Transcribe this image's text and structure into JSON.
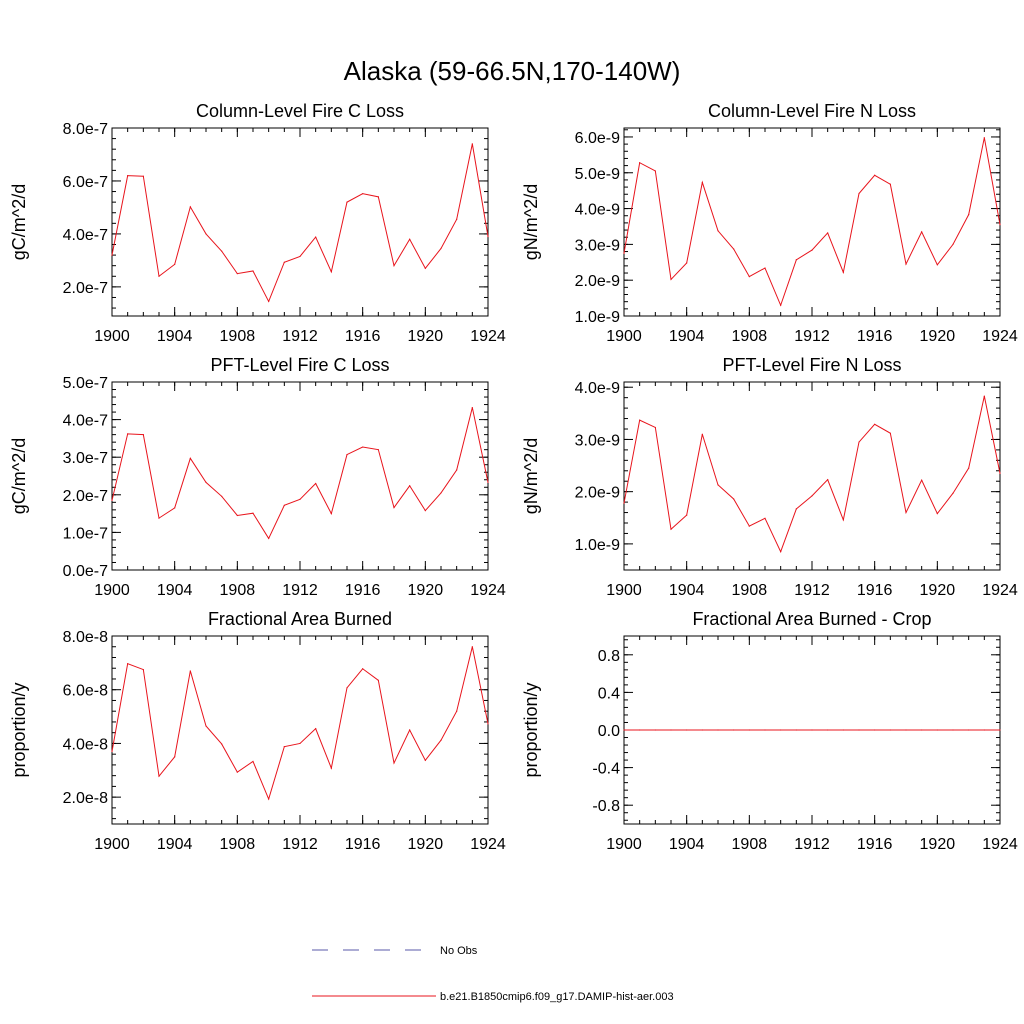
{
  "figure": {
    "title": "Alaska (59-66.5N,170-140W)"
  },
  "colors": {
    "series": "#e8141c",
    "obs": "#5a5aa8",
    "axis": "#000000"
  },
  "legend": {
    "placement": "bottom-center",
    "entries": [
      {
        "label": "No Obs",
        "style": "dashed",
        "color": "#5a5aa8"
      },
      {
        "label": "b.e21.B1850cmip6.f09_g17.DAMIP-hist-aer.003",
        "style": "solid",
        "color": "#e8141c"
      }
    ]
  },
  "chart_data": [
    {
      "type": "line",
      "title": "Column-Level Fire C Loss",
      "ylabel": "gC/m^2/d",
      "xlim": [
        1900,
        1924
      ],
      "ylim": [
        9e-08,
        8e-07
      ],
      "xticks": [
        1900,
        1904,
        1908,
        1912,
        1916,
        1920,
        1924
      ],
      "xtick_labels": [
        "1900",
        "1904",
        "1908",
        "1912",
        "1916",
        "1920",
        "1924"
      ],
      "yticks": [
        2e-07,
        4e-07,
        6e-07,
        8e-07
      ],
      "ytick_labels": [
        "2.0e-7",
        "4.0e-7",
        "6.0e-7",
        "8.0e-7"
      ],
      "series": [
        {
          "name": "b.e21.B1850cmip6.f09_g17.DAMIP-hist-aer.003",
          "x": [
            1900,
            1901,
            1902,
            1903,
            1904,
            1905,
            1906,
            1907,
            1908,
            1909,
            1910,
            1911,
            1912,
            1913,
            1914,
            1915,
            1916,
            1917,
            1918,
            1919,
            1920,
            1921,
            1922,
            1923,
            1924
          ],
          "values": [
            3.2e-07,
            6.2e-07,
            6.18e-07,
            2.4e-07,
            2.85e-07,
            5.02e-07,
            4e-07,
            3.35e-07,
            2.5e-07,
            2.6e-07,
            1.45e-07,
            2.93e-07,
            3.15e-07,
            3.88e-07,
            2.57e-07,
            5.2e-07,
            5.52e-07,
            5.4e-07,
            2.8e-07,
            3.8e-07,
            2.7e-07,
            3.45e-07,
            4.55e-07,
            7.4e-07,
            3.9e-07
          ]
        }
      ]
    },
    {
      "type": "line",
      "title": "Column-Level Fire N Loss",
      "ylabel": "gN/m^2/d",
      "xlim": [
        1900,
        1924
      ],
      "ylim": [
        1e-09,
        6.25e-09
      ],
      "xticks": [
        1900,
        1904,
        1908,
        1912,
        1916,
        1920,
        1924
      ],
      "xtick_labels": [
        "1900",
        "1904",
        "1908",
        "1912",
        "1916",
        "1920",
        "1924"
      ],
      "yticks": [
        1e-09,
        2e-09,
        3e-09,
        4e-09,
        5e-09,
        6e-09
      ],
      "ytick_labels": [
        "1.0e-9",
        "2.0e-9",
        "3.0e-9",
        "4.0e-9",
        "5.0e-9",
        "6.0e-9"
      ],
      "series": [
        {
          "name": "b.e21.B1850cmip6.f09_g17.DAMIP-hist-aer.003",
          "x": [
            1900,
            1901,
            1902,
            1903,
            1904,
            1905,
            1906,
            1907,
            1908,
            1909,
            1910,
            1911,
            1912,
            1913,
            1914,
            1915,
            1916,
            1917,
            1918,
            1919,
            1920,
            1921,
            1922,
            1923,
            1924
          ],
          "values": [
            2.75e-09,
            5.28e-09,
            5.05e-09,
            2.02e-09,
            2.48e-09,
            4.73e-09,
            3.38e-09,
            2.87e-09,
            2.1e-09,
            2.34e-09,
            1.3e-09,
            2.57e-09,
            2.84e-09,
            3.32e-09,
            2.22e-09,
            4.42e-09,
            4.93e-09,
            4.68e-09,
            2.45e-09,
            3.35e-09,
            2.43e-09,
            3e-09,
            3.83e-09,
            5.98e-09,
            3.55e-09
          ]
        }
      ]
    },
    {
      "type": "line",
      "title": "PFT-Level Fire C Loss",
      "ylabel": "gC/m^2/d",
      "xlim": [
        1900,
        1924
      ],
      "ylim": [
        0.0,
        5e-07
      ],
      "xticks": [
        1900,
        1904,
        1908,
        1912,
        1916,
        1920,
        1924
      ],
      "xtick_labels": [
        "1900",
        "1904",
        "1908",
        "1912",
        "1916",
        "1920",
        "1924"
      ],
      "yticks": [
        0.0,
        1e-07,
        2e-07,
        3e-07,
        4e-07,
        5e-07
      ],
      "ytick_labels": [
        "0.0e-7",
        "1.0e-7",
        "2.0e-7",
        "3.0e-7",
        "4.0e-7",
        "5.0e-7"
      ],
      "series": [
        {
          "name": "b.e21.B1850cmip6.f09_g17.DAMIP-hist-aer.003",
          "x": [
            1900,
            1901,
            1902,
            1903,
            1904,
            1905,
            1906,
            1907,
            1908,
            1909,
            1910,
            1911,
            1912,
            1913,
            1914,
            1915,
            1916,
            1917,
            1918,
            1919,
            1920,
            1921,
            1922,
            1923,
            1924
          ],
          "values": [
            1.85e-07,
            3.62e-07,
            3.6e-07,
            1.38e-07,
            1.65e-07,
            2.97e-07,
            2.33e-07,
            1.96e-07,
            1.45e-07,
            1.51e-07,
            8.4e-08,
            1.72e-07,
            1.88e-07,
            2.3e-07,
            1.5e-07,
            3.07e-07,
            3.27e-07,
            3.2e-07,
            1.66e-07,
            2.24e-07,
            1.58e-07,
            2.05e-07,
            2.66e-07,
            4.32e-07,
            2.33e-07
          ]
        }
      ]
    },
    {
      "type": "line",
      "title": "PFT-Level Fire N Loss",
      "ylabel": "gN/m^2/d",
      "xlim": [
        1900,
        1924
      ],
      "ylim": [
        5e-10,
        4.1e-09
      ],
      "xticks": [
        1900,
        1904,
        1908,
        1912,
        1916,
        1920,
        1924
      ],
      "xtick_labels": [
        "1900",
        "1904",
        "1908",
        "1912",
        "1916",
        "1920",
        "1924"
      ],
      "yticks": [
        1e-09,
        2e-09,
        3e-09,
        4e-09
      ],
      "ytick_labels": [
        "1.0e-9",
        "2.0e-9",
        "3.0e-9",
        "4.0e-9"
      ],
      "series": [
        {
          "name": "b.e21.B1850cmip6.f09_g17.DAMIP-hist-aer.003",
          "x": [
            1900,
            1901,
            1902,
            1903,
            1904,
            1905,
            1906,
            1907,
            1908,
            1909,
            1910,
            1911,
            1912,
            1913,
            1914,
            1915,
            1916,
            1917,
            1918,
            1919,
            1920,
            1921,
            1922,
            1923,
            1924
          ],
          "values": [
            1.78e-09,
            3.37e-09,
            3.23e-09,
            1.28e-09,
            1.55e-09,
            3.1e-09,
            2.13e-09,
            1.86e-09,
            1.34e-09,
            1.49e-09,
            8.5e-10,
            1.67e-09,
            1.92e-09,
            2.23e-09,
            1.46e-09,
            2.95e-09,
            3.29e-09,
            3.12e-09,
            1.6e-09,
            2.22e-09,
            1.58e-09,
            1.97e-09,
            2.45e-09,
            3.83e-09,
            2.35e-09
          ]
        }
      ]
    },
    {
      "type": "line",
      "title": "Fractional Area Burned",
      "ylabel": "proportion/y",
      "xlim": [
        1900,
        1924
      ],
      "ylim": [
        1e-08,
        8e-08
      ],
      "xticks": [
        1900,
        1904,
        1908,
        1912,
        1916,
        1920,
        1924
      ],
      "xtick_labels": [
        "1900",
        "1904",
        "1908",
        "1912",
        "1916",
        "1920",
        "1924"
      ],
      "yticks": [
        2e-08,
        4e-08,
        6e-08,
        8e-08
      ],
      "ytick_labels": [
        "2.0e-8",
        "4.0e-8",
        "6.0e-8",
        "8.0e-8"
      ],
      "series": [
        {
          "name": "b.e21.B1850cmip6.f09_g17.DAMIP-hist-aer.003",
          "x": [
            1900,
            1901,
            1902,
            1903,
            1904,
            1905,
            1906,
            1907,
            1908,
            1909,
            1910,
            1911,
            1912,
            1913,
            1914,
            1915,
            1916,
            1917,
            1918,
            1919,
            1920,
            1921,
            1922,
            1923,
            1924
          ],
          "values": [
            3.7e-08,
            6.97e-08,
            6.75e-08,
            2.78e-08,
            3.5e-08,
            6.7e-08,
            4.65e-08,
            3.98e-08,
            2.93e-08,
            3.33e-08,
            1.93e-08,
            3.88e-08,
            4e-08,
            4.55e-08,
            3.08e-08,
            6.07e-08,
            6.78e-08,
            6.35e-08,
            3.27e-08,
            4.5e-08,
            3.37e-08,
            4.12e-08,
            5.2e-08,
            7.6e-08,
            4.73e-08
          ]
        }
      ]
    },
    {
      "type": "line",
      "title": "Fractional Area Burned - Crop",
      "ylabel": "proportion/y",
      "xlim": [
        1900,
        1924
      ],
      "ylim": [
        -1.0,
        1.0
      ],
      "xticks": [
        1900,
        1904,
        1908,
        1912,
        1916,
        1920,
        1924
      ],
      "xtick_labels": [
        "1900",
        "1904",
        "1908",
        "1912",
        "1916",
        "1920",
        "1924"
      ],
      "yticks": [
        -0.8,
        -0.4,
        0.0,
        0.4,
        0.8
      ],
      "ytick_labels": [
        "-0.8",
        "-0.4",
        "0.0",
        "0.4",
        "0.8"
      ],
      "series": [
        {
          "name": "b.e21.B1850cmip6.f09_g17.DAMIP-hist-aer.003",
          "x": [
            1900,
            1901,
            1902,
            1903,
            1904,
            1905,
            1906,
            1907,
            1908,
            1909,
            1910,
            1911,
            1912,
            1913,
            1914,
            1915,
            1916,
            1917,
            1918,
            1919,
            1920,
            1921,
            1922,
            1923,
            1924
          ],
          "values": [
            0,
            0,
            0,
            0,
            0,
            0,
            0,
            0,
            0,
            0,
            0,
            0,
            0,
            0,
            0,
            0,
            0,
            0,
            0,
            0,
            0,
            0,
            0,
            0,
            0
          ]
        }
      ]
    }
  ]
}
